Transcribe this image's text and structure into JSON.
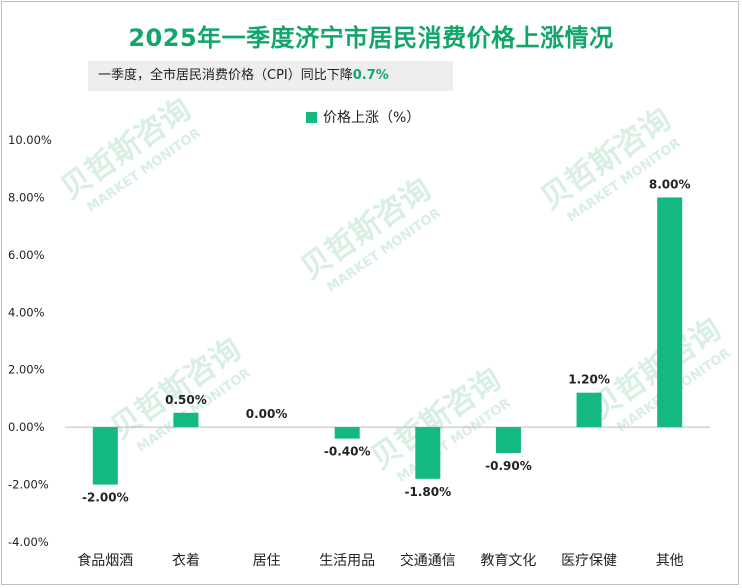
{
  "colors": {
    "accent": "#13a66b",
    "bar": "#13b882"
  },
  "header": {
    "title": "2025年一季度济宁市居民消费价格上涨情况",
    "subtitle_prefix": "一季度，全市居民消费价格（CPI）同比下降",
    "subtitle_value": "0.7%"
  },
  "watermark": {
    "cn": "贝哲斯咨询",
    "en": "MARKET MONITOR"
  },
  "chart_data": {
    "type": "bar",
    "title": "2025年一季度济宁市居民消费价格上涨情况",
    "categories": [
      "食品烟酒",
      "衣着",
      "居住",
      "生活用品",
      "交通通信",
      "教育文化",
      "医疗保健",
      "其他"
    ],
    "series": [
      {
        "name": "价格上涨（%）",
        "values": [
          -2.0,
          0.5,
          0.0,
          -0.4,
          -1.8,
          -0.9,
          1.2,
          8.0
        ],
        "labels": [
          "-2.00%",
          "0.50%",
          "0.00%",
          "-0.40%",
          "-1.80%",
          "-0.90%",
          "1.20%",
          "8.00%"
        ]
      }
    ],
    "ylim": [
      -4,
      10
    ],
    "yticks": [
      -4,
      -2,
      0,
      2,
      4,
      6,
      8,
      10
    ],
    "ytick_labels": [
      "-4.00%",
      "-2.00%",
      "0.00%",
      "2.00%",
      "4.00%",
      "6.00%",
      "8.00%",
      "10.00%"
    ],
    "xlabel": "",
    "ylabel": "",
    "grid": false,
    "legend_position": "top-center"
  }
}
